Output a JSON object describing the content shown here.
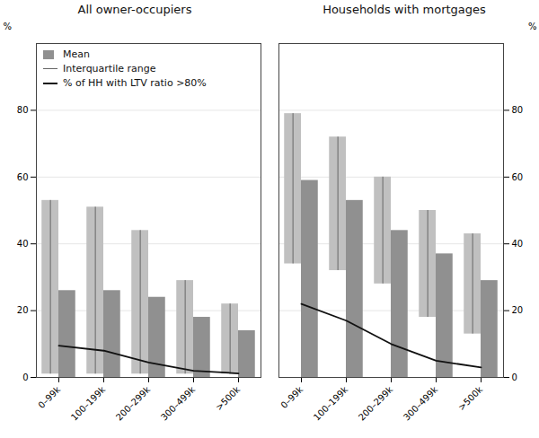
{
  "chart_data": [
    {
      "type": "bar",
      "title": "All owner-occupiers",
      "categories": [
        "0–99k",
        "100–199k",
        "200–299k",
        "300–499k",
        ">500k"
      ],
      "ylabel": "%",
      "ylim": [
        0,
        100
      ],
      "yticks": [
        0,
        20,
        40,
        60,
        80
      ],
      "grid": true,
      "legend": "upper left",
      "series": [
        {
          "type": "bar",
          "color": "#c0c0c0",
          "low": [
            1,
            1,
            1,
            1,
            1
          ],
          "high": [
            53,
            51,
            44,
            29,
            22
          ]
        },
        {
          "name": "Mean",
          "type": "bar",
          "color": "#909090",
          "values": [
            26,
            26,
            24,
            18,
            14
          ]
        },
        {
          "name": "Interquartile range",
          "type": "range",
          "color": "#666666",
          "low": [
            1,
            1,
            1,
            1,
            1
          ],
          "high": [
            53,
            51,
            44,
            29,
            22
          ]
        },
        {
          "name": "% of HH with LTV ratio >80%",
          "type": "line",
          "color": "#111111",
          "values": [
            9.5,
            8.0,
            4.5,
            2.0,
            1.2
          ]
        }
      ]
    },
    {
      "type": "bar",
      "title": "Households with mortgages",
      "categories": [
        "0–99k",
        "100–199k",
        "200–299k",
        "300–499k",
        ">500k"
      ],
      "ylabel": "%",
      "ylim": [
        0,
        100
      ],
      "yticks": [
        0,
        20,
        40,
        60,
        80
      ],
      "grid": true,
      "series": [
        {
          "type": "bar",
          "color": "#c0c0c0",
          "low": [
            34,
            32,
            28,
            18,
            13
          ],
          "high": [
            79,
            72,
            60,
            50,
            43
          ]
        },
        {
          "name": "Mean",
          "type": "bar",
          "color": "#909090",
          "values": [
            59,
            53,
            44,
            37,
            29
          ]
        },
        {
          "name": "Interquartile range",
          "type": "range",
          "color": "#666666",
          "low": [
            34,
            32,
            28,
            18,
            13
          ],
          "high": [
            79,
            72,
            60,
            50,
            43
          ]
        },
        {
          "name": "% of HH with LTV ratio >80%",
          "type": "line",
          "color": "#111111",
          "values": [
            22,
            17,
            10,
            5,
            3
          ]
        }
      ]
    }
  ]
}
